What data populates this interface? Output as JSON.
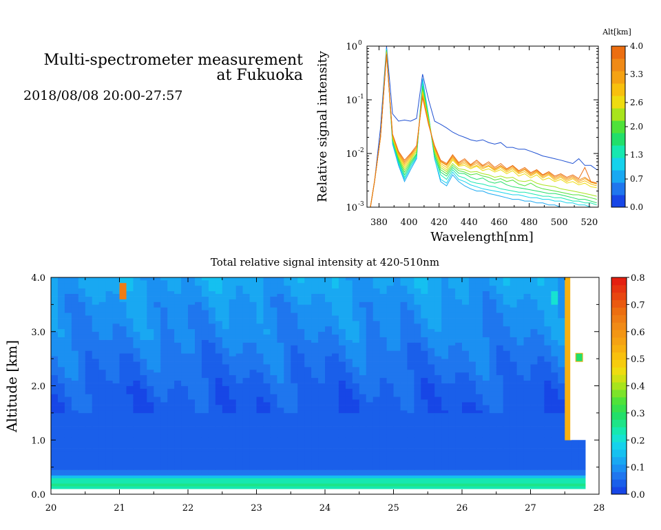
{
  "header": {
    "title_line1": "Multi-spectrometer measurement",
    "title_line2": "at Fukuoka",
    "datetime": "2018/08/08 20:00-27:57"
  },
  "chart_data": [
    {
      "type": "line",
      "xlabel": "Wavelength[nm]",
      "ylabel": "Relative signal intensity",
      "y_scale": "log",
      "xlim": [
        372,
        526
      ],
      "ylim": [
        0.001,
        1
      ],
      "x_ticks": [
        "380",
        "400",
        "420",
        "440",
        "460",
        "480",
        "500",
        "520"
      ],
      "y_ticks": [
        "10",
        "10",
        "10",
        "10"
      ],
      "y_tick_exponents": [
        "-3",
        "-2",
        "-1",
        "0"
      ],
      "colorbar": {
        "label": "Alt[km]",
        "ticks": [
          "0.0",
          "0.7",
          "1.3",
          "2.0",
          "2.6",
          "3.3",
          "4.0"
        ],
        "colors": [
          "#1746e6",
          "#1f76ee",
          "#19a8f2",
          "#15d2ec",
          "#16e8b0",
          "#22df6a",
          "#4fe23a",
          "#a8e41c",
          "#eedc10",
          "#f8c00e",
          "#f5a213",
          "#f08a16",
          "#ec6e10"
        ]
      },
      "x": [
        373,
        377,
        381,
        385,
        389,
        393,
        397,
        401,
        405,
        409,
        413,
        417,
        421,
        425,
        429,
        433,
        437,
        441,
        445,
        449,
        453,
        457,
        461,
        465,
        469,
        473,
        477,
        481,
        485,
        489,
        493,
        497,
        501,
        505,
        509,
        513,
        517,
        521,
        525
      ],
      "series": [
        {
          "color": "#1e50d2",
          "values": [
            0.0006,
            0.003,
            0.03,
            1.0,
            0.055,
            0.04,
            0.042,
            0.04,
            0.045,
            0.3,
            0.1,
            0.04,
            0.035,
            0.03,
            0.025,
            0.022,
            0.02,
            0.018,
            0.017,
            0.018,
            0.016,
            0.015,
            0.016,
            0.013,
            0.013,
            0.012,
            0.012,
            0.011,
            0.01,
            0.009,
            0.0085,
            0.008,
            0.0075,
            0.007,
            0.0065,
            0.008,
            0.006,
            0.006,
            0.005
          ]
        },
        {
          "color": "#19a8f2",
          "values": [
            0.0006,
            0.003,
            0.02,
            0.9,
            0.015,
            0.006,
            0.003,
            0.005,
            0.008,
            0.25,
            0.05,
            0.008,
            0.003,
            0.0025,
            0.004,
            0.003,
            0.0025,
            0.0022,
            0.002,
            0.002,
            0.0018,
            0.0017,
            0.0016,
            0.0015,
            0.0014,
            0.0014,
            0.0013,
            0.0013,
            0.0012,
            0.0012,
            0.0011,
            0.0011,
            0.001,
            0.001,
            0.001,
            0.001,
            0.0009,
            0.0009,
            0.0009
          ]
        },
        {
          "color": "#15d2ec",
          "values": [
            0.0006,
            0.003,
            0.02,
            0.9,
            0.016,
            0.0065,
            0.0033,
            0.0055,
            0.0085,
            0.22,
            0.05,
            0.008,
            0.0033,
            0.0028,
            0.0045,
            0.0033,
            0.003,
            0.0026,
            0.0024,
            0.0022,
            0.0021,
            0.002,
            0.0019,
            0.0018,
            0.0017,
            0.0017,
            0.0016,
            0.0015,
            0.0015,
            0.0014,
            0.0014,
            0.0013,
            0.0013,
            0.0012,
            0.0012,
            0.0011,
            0.0011,
            0.001,
            0.001
          ]
        },
        {
          "color": "#16e8b0",
          "values": [
            0.0006,
            0.003,
            0.02,
            0.85,
            0.017,
            0.007,
            0.0036,
            0.006,
            0.009,
            0.2,
            0.05,
            0.009,
            0.004,
            0.0033,
            0.005,
            0.0038,
            0.0035,
            0.003,
            0.0028,
            0.0027,
            0.0025,
            0.0024,
            0.0022,
            0.0021,
            0.002,
            0.0019,
            0.0019,
            0.0018,
            0.0017,
            0.0016,
            0.0016,
            0.0015,
            0.0015,
            0.0014,
            0.0013,
            0.0013,
            0.0012,
            0.0012,
            0.0011
          ]
        },
        {
          "color": "#22df6a",
          "values": [
            0.0006,
            0.003,
            0.02,
            0.85,
            0.018,
            0.0075,
            0.004,
            0.0065,
            0.0095,
            0.18,
            0.045,
            0.009,
            0.0045,
            0.0038,
            0.0055,
            0.0043,
            0.0042,
            0.0036,
            0.0033,
            0.0035,
            0.003,
            0.0028,
            0.003,
            0.0026,
            0.0024,
            0.0023,
            0.0022,
            0.0021,
            0.002,
            0.0019,
            0.0018,
            0.0018,
            0.0017,
            0.0016,
            0.0015,
            0.0014,
            0.0014,
            0.0013,
            0.0012
          ]
        },
        {
          "color": "#4fe23a",
          "values": [
            0.0006,
            0.003,
            0.02,
            0.8,
            0.018,
            0.008,
            0.0045,
            0.007,
            0.01,
            0.16,
            0.045,
            0.01,
            0.005,
            0.0042,
            0.006,
            0.0048,
            0.0045,
            0.004,
            0.0042,
            0.0038,
            0.0036,
            0.0032,
            0.0034,
            0.003,
            0.0032,
            0.0027,
            0.0025,
            0.0028,
            0.0024,
            0.0022,
            0.0021,
            0.002,
            0.0019,
            0.0018,
            0.0017,
            0.0017,
            0.0016,
            0.0015,
            0.0014
          ]
        },
        {
          "color": "#a8e41c",
          "values": [
            0.0006,
            0.003,
            0.02,
            0.8,
            0.019,
            0.0085,
            0.005,
            0.0075,
            0.011,
            0.15,
            0.04,
            0.011,
            0.0055,
            0.0046,
            0.0065,
            0.0052,
            0.005,
            0.0045,
            0.0046,
            0.0042,
            0.004,
            0.0036,
            0.0038,
            0.0035,
            0.0036,
            0.0031,
            0.003,
            0.0032,
            0.0028,
            0.0026,
            0.0025,
            0.0024,
            0.0022,
            0.0021,
            0.002,
            0.0019,
            0.0018,
            0.0017,
            0.0016
          ]
        },
        {
          "color": "#eedc10",
          "values": [
            0.0006,
            0.003,
            0.02,
            0.75,
            0.02,
            0.009,
            0.0055,
            0.008,
            0.012,
            0.14,
            0.04,
            0.012,
            0.006,
            0.005,
            0.0075,
            0.0058,
            0.006,
            0.0052,
            0.0058,
            0.0048,
            0.0052,
            0.0045,
            0.005,
            0.0042,
            0.0048,
            0.0038,
            0.0042,
            0.0035,
            0.004,
            0.0032,
            0.0035,
            0.003,
            0.0033,
            0.0028,
            0.003,
            0.0026,
            0.0028,
            0.0024,
            0.0023
          ]
        },
        {
          "color": "#f8c00e",
          "values": [
            0.0006,
            0.003,
            0.02,
            0.75,
            0.021,
            0.0095,
            0.006,
            0.0085,
            0.012,
            0.13,
            0.038,
            0.012,
            0.0065,
            0.0055,
            0.008,
            0.006,
            0.0065,
            0.0055,
            0.006,
            0.0052,
            0.0058,
            0.0048,
            0.0055,
            0.0045,
            0.0052,
            0.0042,
            0.0046,
            0.0038,
            0.0044,
            0.0035,
            0.004,
            0.0032,
            0.0036,
            0.003,
            0.0034,
            0.0028,
            0.0031,
            0.0027,
            0.0025
          ]
        },
        {
          "color": "#f5a213",
          "values": [
            0.0006,
            0.003,
            0.02,
            0.7,
            0.022,
            0.01,
            0.0065,
            0.009,
            0.013,
            0.12,
            0.036,
            0.013,
            0.007,
            0.006,
            0.0085,
            0.0062,
            0.007,
            0.0058,
            0.0065,
            0.0055,
            0.006,
            0.005,
            0.0058,
            0.0048,
            0.0055,
            0.0044,
            0.005,
            0.004,
            0.0046,
            0.0037,
            0.0042,
            0.0034,
            0.0038,
            0.0032,
            0.0036,
            0.003,
            0.0034,
            0.0029,
            0.0027
          ]
        },
        {
          "color": "#f08a16",
          "values": [
            0.0006,
            0.003,
            0.02,
            0.7,
            0.022,
            0.0105,
            0.007,
            0.0095,
            0.013,
            0.12,
            0.035,
            0.013,
            0.0072,
            0.0062,
            0.009,
            0.0065,
            0.0075,
            0.006,
            0.007,
            0.0058,
            0.0065,
            0.0052,
            0.006,
            0.005,
            0.0058,
            0.0046,
            0.0052,
            0.0042,
            0.0048,
            0.0039,
            0.0044,
            0.0036,
            0.004,
            0.0034,
            0.0038,
            0.0032,
            0.0036,
            0.003,
            0.0028
          ]
        },
        {
          "color": "#ec6e10",
          "values": [
            0.0006,
            0.003,
            0.02,
            0.7,
            0.023,
            0.011,
            0.0075,
            0.01,
            0.014,
            0.11,
            0.034,
            0.014,
            0.0075,
            0.0065,
            0.0095,
            0.0068,
            0.008,
            0.0062,
            0.0075,
            0.006,
            0.007,
            0.0055,
            0.0065,
            0.0052,
            0.006,
            0.0048,
            0.0055,
            0.0044,
            0.005,
            0.004,
            0.0046,
            0.0038,
            0.0042,
            0.0036,
            0.004,
            0.0034,
            0.0055,
            0.003,
            0.0028
          ]
        }
      ]
    },
    {
      "type": "heatmap",
      "title": "Total relative signal intensity at 420-510nm",
      "ylabel": "Altitude [km]",
      "xlim": [
        20,
        28
      ],
      "ylim": [
        0.0,
        4.0
      ],
      "x_ticks": [
        "20",
        "21",
        "22",
        "23",
        "24",
        "25",
        "26",
        "27",
        "28"
      ],
      "y_ticks": [
        "0.0",
        "1.0",
        "2.0",
        "3.0",
        "4.0"
      ],
      "data_x_end": 27.8,
      "colorbar": {
        "ticks": [
          "0.0",
          "0.1",
          "0.2",
          "0.3",
          "0.4",
          "0.5",
          "0.6",
          "0.7",
          "0.8"
        ],
        "colors": [
          "#1746e6",
          "#1a5fea",
          "#1f76ee",
          "#1b90f2",
          "#19a8f2",
          "#15c0f0",
          "#15d2ec",
          "#16e2d2",
          "#16e8b0",
          "#1ee488",
          "#22df6a",
          "#36e04e",
          "#4fe23a",
          "#7ce32a",
          "#a8e41c",
          "#d0e014",
          "#eedc10",
          "#f6cc0e",
          "#f8c00e",
          "#f7b010",
          "#f5a213",
          "#f39614",
          "#f08a16",
          "#ee7c14",
          "#ec6e10",
          "#ea5a10",
          "#e84610",
          "#e63410",
          "#e42010"
        ]
      },
      "altitude_profile": {
        "altitudes_km": [
          0.1,
          0.15,
          0.2,
          0.25,
          0.3,
          0.35,
          0.4,
          0.5,
          0.7,
          1.0,
          1.5,
          2.0,
          2.5,
          3.0,
          3.5,
          3.9
        ],
        "values": [
          0.14,
          0.33,
          0.18,
          0.28,
          0.2,
          0.1,
          0.06,
          0.05,
          0.04,
          0.03,
          0.035,
          0.05,
          0.07,
          0.09,
          0.1,
          0.12
        ]
      },
      "features": [
        {
          "time": 21.05,
          "alt_lo": 3.6,
          "alt_hi": 3.9,
          "value": 0.65
        },
        {
          "time": 27.52,
          "alt_lo": 1.0,
          "alt_hi": 4.0,
          "value": 0.55
        },
        {
          "time": 27.7,
          "alt_lo": 2.45,
          "alt_hi": 2.6,
          "value": 0.3
        },
        {
          "time": 27.35,
          "alt_lo": 3.5,
          "alt_hi": 3.75,
          "value": 0.22
        }
      ]
    }
  ]
}
